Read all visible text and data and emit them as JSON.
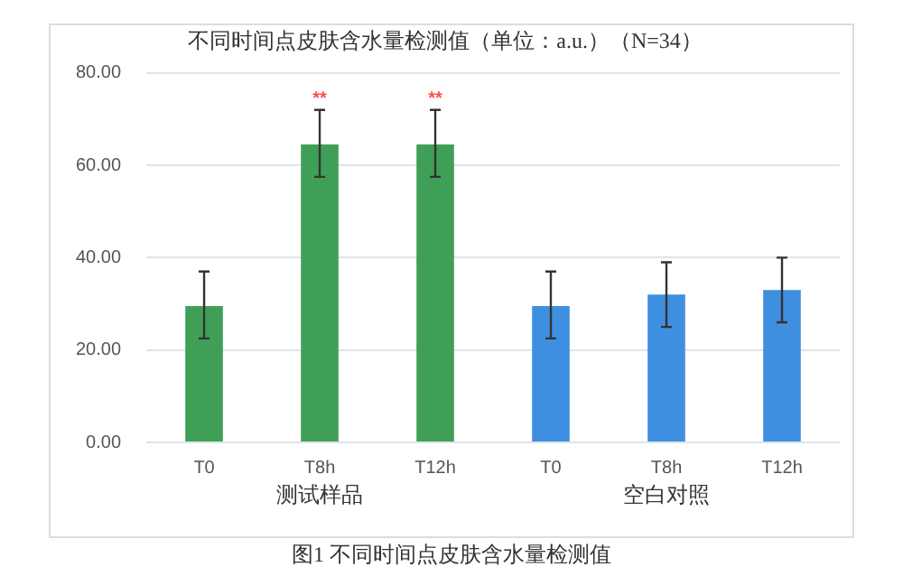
{
  "chart_data": {
    "type": "bar",
    "title": "不同时间点皮肤含水量检测值（单位：a.u.）（N=34）",
    "categories": [
      "T0",
      "T8h",
      "T12h",
      "T0",
      "T8h",
      "T12h"
    ],
    "values": [
      29.5,
      64.5,
      64.5,
      29.5,
      32,
      33
    ],
    "colors": [
      "#3f9f57",
      "#3f9f57",
      "#3f9f57",
      "#3f8fe0",
      "#3f8fe0",
      "#3f8fe0"
    ],
    "errors": [
      [
        22.5,
        37
      ],
      [
        57.5,
        72
      ],
      [
        57.5,
        72
      ],
      [
        22.5,
        37
      ],
      [
        25,
        39
      ],
      [
        26,
        40
      ]
    ],
    "ylim": [
      0,
      80
    ],
    "yticks": [
      {
        "value": 0,
        "label": "0.00"
      },
      {
        "value": 20,
        "label": "20.00"
      },
      {
        "value": 40,
        "label": "40.00"
      },
      {
        "value": 60,
        "label": "60.00"
      },
      {
        "value": 80,
        "label": "80.00"
      }
    ],
    "grid": "y",
    "legend": false,
    "annotations": [
      "测试样品",
      "空白对照",
      "图1 不同时间点皮肤含水量检测值",
      {
        "text": "**",
        "x": "T8h",
        "y": 72
      },
      {
        "text": "**",
        "x": "T12h",
        "y": 72
      }
    ]
  }
}
